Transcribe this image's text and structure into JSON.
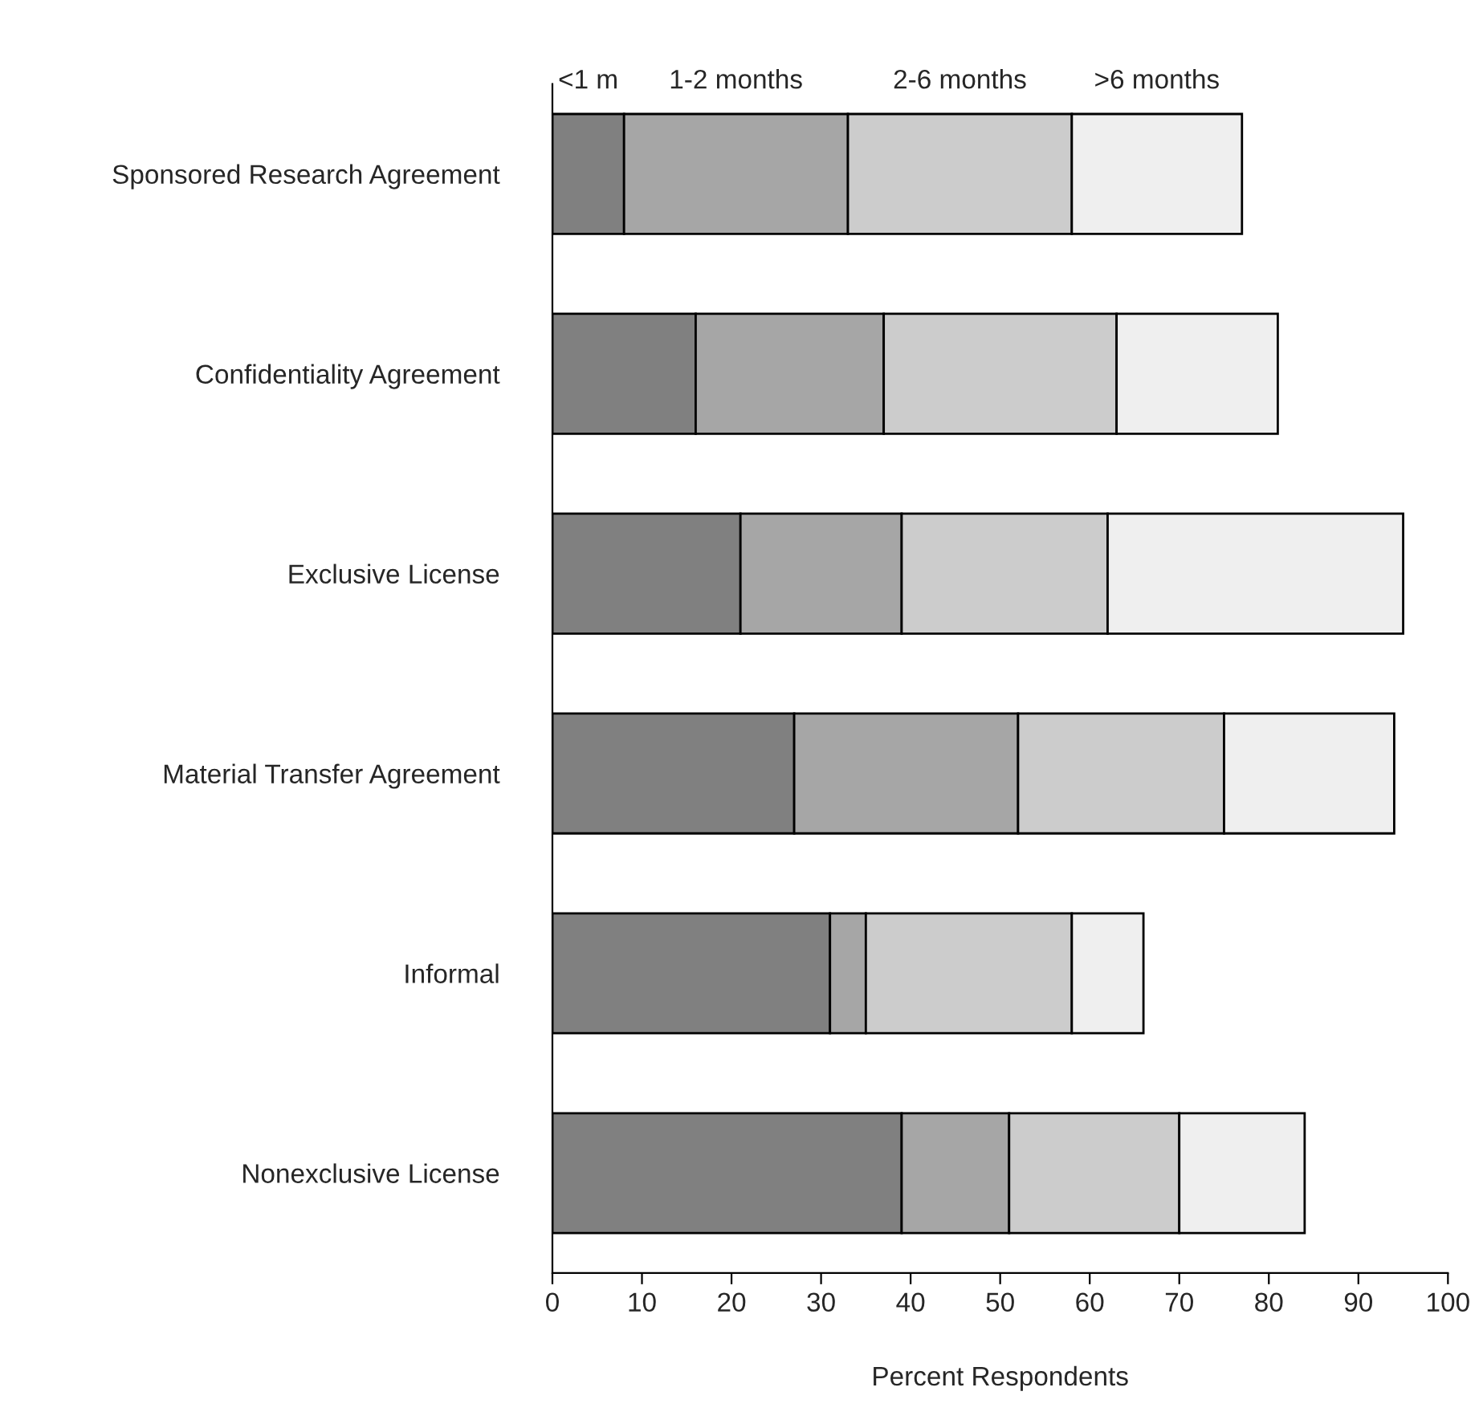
{
  "chart_data": {
    "type": "bar",
    "orientation": "horizontal",
    "stacked": true,
    "xlabel": "Percent Respondents",
    "categories": [
      "Sponsored Research Agreement",
      "Confidentiality Agreement",
      "Exclusive License",
      "Material Transfer Agreement",
      "Informal",
      "Nonexclusive License"
    ],
    "series": [
      {
        "name": "<1 m",
        "color": "#808080",
        "values": [
          8,
          16,
          21,
          27,
          31,
          39
        ]
      },
      {
        "name": "1-2 months",
        "color": "#a6a6a6",
        "values": [
          25,
          21,
          18,
          25,
          4,
          12
        ]
      },
      {
        "name": "2-6 months",
        "color": "#cccccc",
        "values": [
          25,
          26,
          23,
          23,
          23,
          19
        ]
      },
      {
        "name": ">6 months",
        "color": "#efefef",
        "values": [
          19,
          18,
          33,
          19,
          8,
          14
        ]
      }
    ],
    "xlim": [
      0,
      100
    ],
    "xticks": [
      0,
      10,
      20,
      30,
      40,
      50,
      60,
      70,
      80,
      90,
      100
    ],
    "grid": false
  }
}
